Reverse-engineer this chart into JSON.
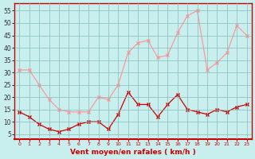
{
  "hours": [
    0,
    1,
    2,
    3,
    4,
    5,
    6,
    7,
    8,
    9,
    10,
    11,
    12,
    13,
    14,
    15,
    16,
    17,
    18,
    19,
    20,
    21,
    22,
    23
  ],
  "wind_avg": [
    14,
    12,
    9,
    7,
    6,
    7,
    9,
    10,
    10,
    7,
    13,
    22,
    17,
    17,
    12,
    17,
    21,
    15,
    14,
    13,
    15,
    14,
    16,
    17
  ],
  "wind_gust": [
    31,
    31,
    25,
    19,
    15,
    14,
    14,
    14,
    20,
    19,
    25,
    38,
    42,
    43,
    36,
    37,
    46,
    53,
    55,
    31,
    34,
    38,
    49,
    45
  ],
  "bg_color": "#c8eeee",
  "grid_color": "#88bbbb",
  "avg_color": "#cc0000",
  "gust_color": "#ff9999",
  "xlabel": "Vent moyen/en rafales ( km/h )",
  "xlabel_color": "#cc0000",
  "yticks": [
    5,
    10,
    15,
    20,
    25,
    30,
    35,
    40,
    45,
    50,
    55
  ],
  "ylim": [
    3,
    58
  ],
  "xlim": [
    -0.5,
    23.5
  ]
}
